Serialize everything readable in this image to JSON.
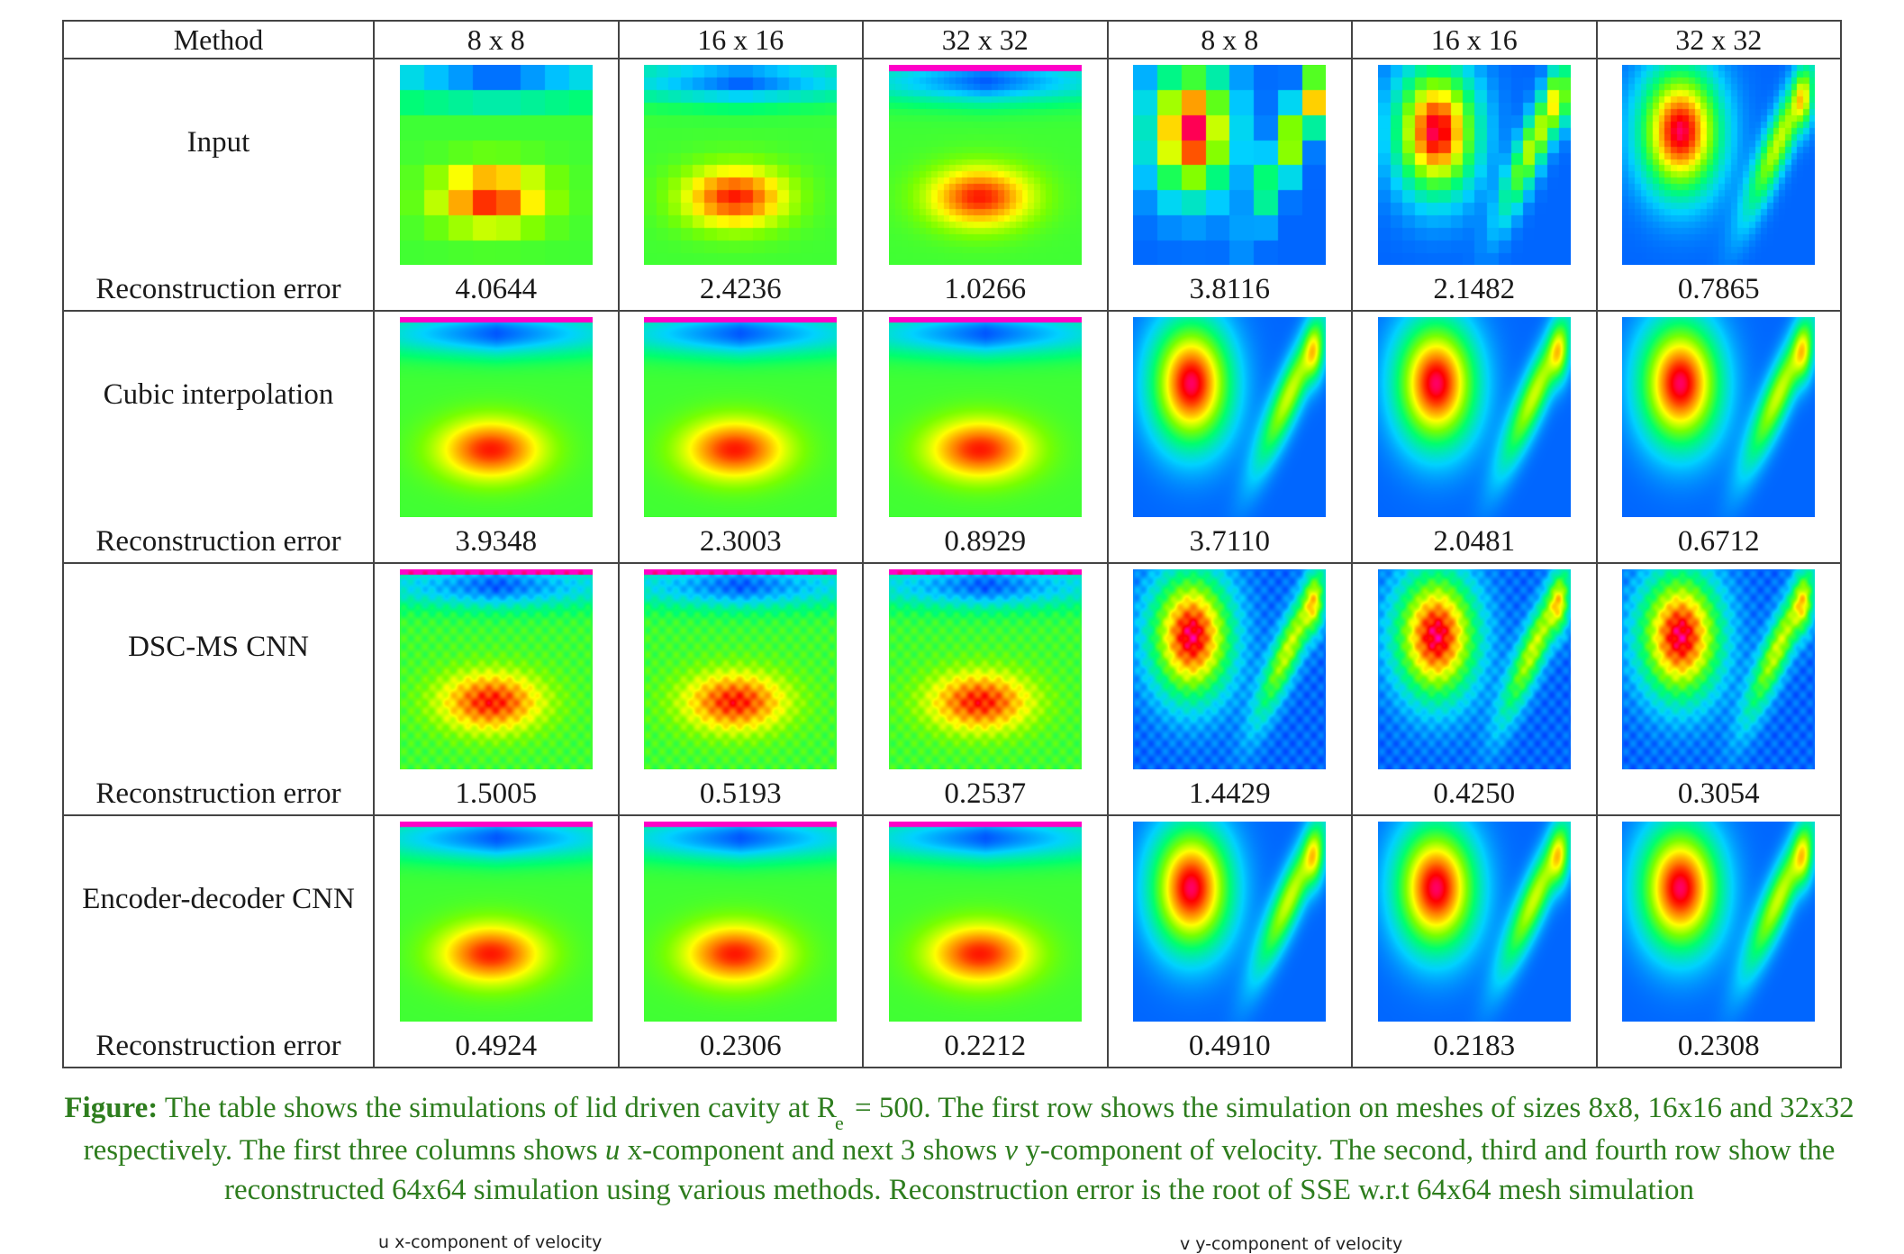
{
  "table": {
    "headers": [
      "Method",
      "8 x 8",
      "16 x 16",
      "32 x 32",
      "8 x 8",
      "16 x 16",
      "32 x 32"
    ],
    "error_label": "Reconstruction error",
    "rows": [
      {
        "method": "Input",
        "errors": [
          "4.0644",
          "2.4236",
          "1.0266",
          "3.8116",
          "2.1482",
          "0.7865"
        ]
      },
      {
        "method": "Cubic interpolation",
        "errors": [
          "3.9348",
          "2.3003",
          "0.8929",
          "3.7110",
          "2.0481",
          "0.6712"
        ]
      },
      {
        "method": "DSC-MS CNN",
        "errors": [
          "1.5005",
          "0.5193",
          "0.2537",
          "1.4429",
          "0.4250",
          "0.3054"
        ]
      },
      {
        "method": "Encoder-decoder CNN",
        "errors": [
          "0.4924",
          "0.2306",
          "0.2212",
          "0.4910",
          "0.2183",
          "0.2308"
        ]
      }
    ]
  },
  "caption": {
    "label": "Figure:",
    "part1": " The table shows the simulations of lid driven cavity at R",
    "subscript": "e",
    "part2": " = 500. The first row shows the simulation on meshes of sizes 8x8, 16x16 and 32x32 respectively. The first three columns shows ",
    "u": "u",
    "part3": " x-component and next 3 shows ",
    "v": "v",
    "part4": " y-component of velocity.  The second, third and fourth row show the reconstructed 64x64 simulation using various methods. Reconstruction error is the root of SSE w.r.t 64x64 mesh simulation"
  },
  "strip": {
    "left": "u x-component of velocity",
    "right": "v y-component of velocity"
  },
  "colors": {
    "caption_green": "#2e7d1e",
    "border": "#444444"
  }
}
